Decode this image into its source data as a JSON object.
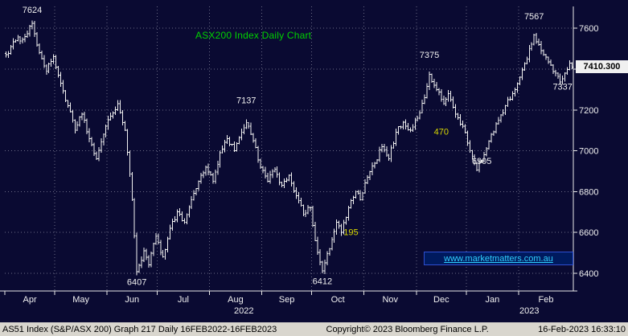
{
  "colors": {
    "background": "#0a0a32",
    "bars": "#f2f2f2",
    "grid": "#6a6a84",
    "axis": "#e8e8e8",
    "axis_text": "#f0f0f0",
    "title_green": "#00d200",
    "annotation_white": "#f0f0f0",
    "annotation_yellow": "#d8d800",
    "badge_bg": "#f0f0f0",
    "badge_text": "#000000",
    "watermark_text": "#2fd0ff",
    "statusbar_bg": "#d9d6ce"
  },
  "chart_data": {
    "type": "ohlc-bar",
    "title": "ASX200 Index Daily Chart",
    "n_days": 239,
    "ylim": [
      6313,
      7707
    ],
    "y_axis": {
      "ticks": [
        7600,
        7400,
        7200,
        7000,
        6800,
        6600,
        6400
      ]
    },
    "months": [
      {
        "label": "Apr",
        "start": 0
      },
      {
        "label": "May",
        "start": 21
      },
      {
        "label": "Jun",
        "start": 43
      },
      {
        "label": "Jul",
        "start": 64
      },
      {
        "label": "Aug",
        "start": 86
      },
      {
        "label": "Sep",
        "start": 108
      },
      {
        "label": "Oct",
        "start": 129
      },
      {
        "label": "Nov",
        "start": 151
      },
      {
        "label": "Dec",
        "start": 173
      },
      {
        "label": "Jan",
        "start": 194
      },
      {
        "label": "Feb",
        "start": 216
      }
    ],
    "end_day": 239,
    "years": [
      {
        "label": "2022",
        "day": 100
      },
      {
        "label": "2023",
        "day": 220
      }
    ],
    "price_anchors": [
      [
        0,
        7470
      ],
      [
        4,
        7540
      ],
      [
        8,
        7560
      ],
      [
        11,
        7624
      ],
      [
        14,
        7480
      ],
      [
        17,
        7390
      ],
      [
        20,
        7460
      ],
      [
        23,
        7330
      ],
      [
        26,
        7220
      ],
      [
        29,
        7100
      ],
      [
        32,
        7180
      ],
      [
        35,
        7060
      ],
      [
        38,
        6960
      ],
      [
        41,
        7080
      ],
      [
        44,
        7170
      ],
      [
        47,
        7230
      ],
      [
        50,
        7100
      ],
      [
        53,
        6760
      ],
      [
        55,
        6407
      ],
      [
        58,
        6510
      ],
      [
        60,
        6440
      ],
      [
        63,
        6580
      ],
      [
        66,
        6480
      ],
      [
        69,
        6620
      ],
      [
        72,
        6700
      ],
      [
        75,
        6650
      ],
      [
        78,
        6760
      ],
      [
        81,
        6850
      ],
      [
        84,
        6920
      ],
      [
        87,
        6850
      ],
      [
        90,
        6990
      ],
      [
        93,
        7060
      ],
      [
        96,
        7000
      ],
      [
        99,
        7090
      ],
      [
        101,
        7137
      ],
      [
        104,
        7050
      ],
      [
        107,
        6920
      ],
      [
        110,
        6850
      ],
      [
        113,
        6910
      ],
      [
        116,
        6830
      ],
      [
        119,
        6880
      ],
      [
        122,
        6780
      ],
      [
        125,
        6690
      ],
      [
        128,
        6720
      ],
      [
        130,
        6560
      ],
      [
        133,
        6412
      ],
      [
        136,
        6520
      ],
      [
        139,
        6650
      ],
      [
        141,
        6600
      ],
      [
        144,
        6720
      ],
      [
        147,
        6800
      ],
      [
        149,
        6760
      ],
      [
        152,
        6870
      ],
      [
        155,
        6940
      ],
      [
        158,
        7020
      ],
      [
        161,
        6960
      ],
      [
        164,
        7090
      ],
      [
        167,
        7140
      ],
      [
        170,
        7100
      ],
      [
        173,
        7160
      ],
      [
        176,
        7260
      ],
      [
        178,
        7375
      ],
      [
        181,
        7300
      ],
      [
        184,
        7230
      ],
      [
        186,
        7280
      ],
      [
        189,
        7180
      ],
      [
        192,
        7120
      ],
      [
        195,
        7000
      ],
      [
        198,
        6905
      ],
      [
        201,
        6980
      ],
      [
        204,
        7080
      ],
      [
        207,
        7150
      ],
      [
        210,
        7220
      ],
      [
        213,
        7280
      ],
      [
        216,
        7360
      ],
      [
        219,
        7450
      ],
      [
        222,
        7567
      ],
      [
        224,
        7520
      ],
      [
        226,
        7470
      ],
      [
        229,
        7420
      ],
      [
        231,
        7380
      ],
      [
        233,
        7337
      ],
      [
        235,
        7380
      ],
      [
        237,
        7430
      ],
      [
        238,
        7410.3
      ]
    ],
    "annotations": [
      {
        "label": "7624",
        "day": 11,
        "price": 7692,
        "color": "#f0f0f0"
      },
      {
        "label": "7137",
        "day": 101,
        "price": 7248,
        "color": "#f0f0f0"
      },
      {
        "label": "7375",
        "day": 178,
        "price": 7470,
        "color": "#f0f0f0"
      },
      {
        "label": "7567",
        "day": 222,
        "price": 7660,
        "color": "#f0f0f0"
      },
      {
        "label": "7337",
        "day": 234,
        "price": 7315,
        "color": "#f0f0f0"
      },
      {
        "label": "6407",
        "day": 55,
        "price": 6358,
        "color": "#f0f0f0"
      },
      {
        "label": "6412",
        "day": 133,
        "price": 6362,
        "color": "#f0f0f0"
      },
      {
        "label": "6905",
        "day": 200,
        "price": 6950,
        "color": "#f0f0f0"
      },
      {
        "label": "470",
        "day": 183,
        "price": 7095,
        "color": "#d8d800"
      },
      {
        "label": "195",
        "day": 145,
        "price": 6602,
        "color": "#d8d800"
      }
    ],
    "last_price": 7410.3,
    "last_price_label": "7410.300"
  },
  "watermark": {
    "text": "www.marketmatters.com.au"
  },
  "footer": {
    "left": "AS51 Index (S&P/ASX 200) Graph 217  Daily 16FEB2022-16FEB2023",
    "center": "Copyright© 2023 Bloomberg Finance L.P.",
    "right": "16-Feb-2023 16:33:10"
  }
}
